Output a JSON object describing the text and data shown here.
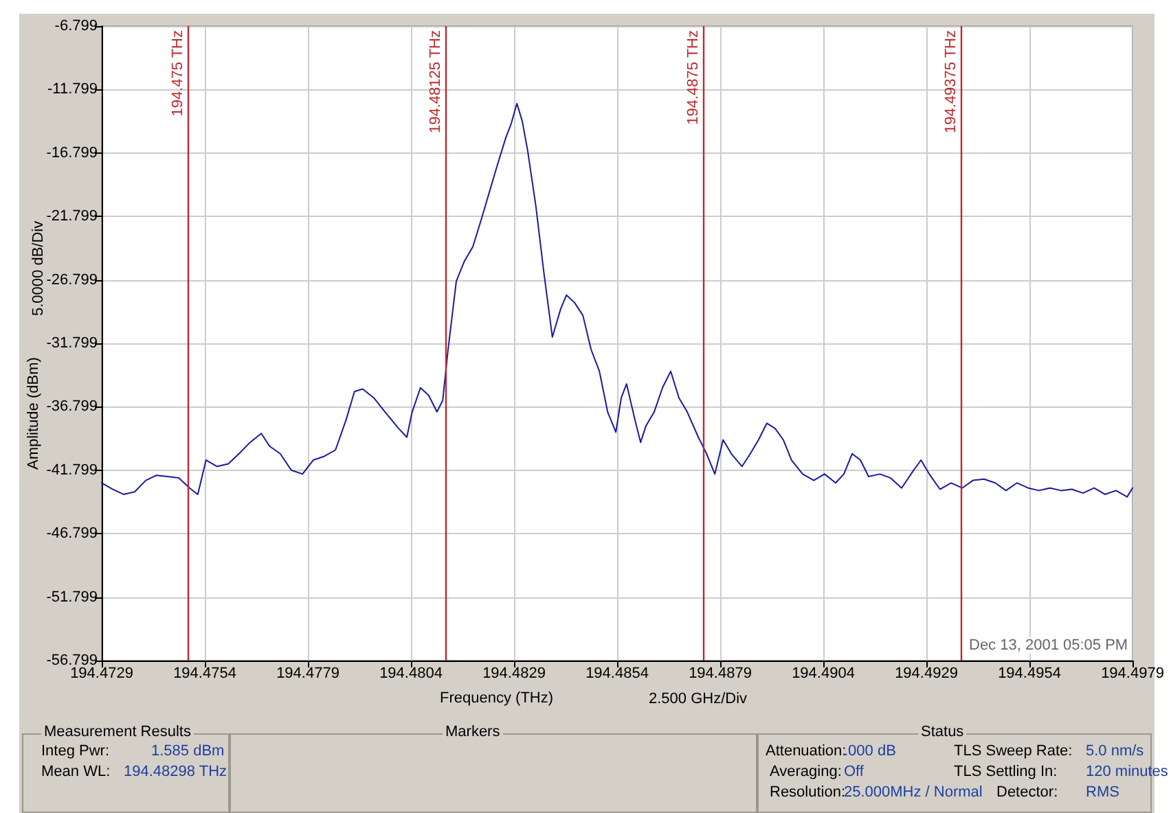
{
  "chart_data": {
    "type": "line",
    "xlabel": "Frequency (THz)",
    "ylabel": "Amplitude (dBm)",
    "xlim": [
      194.4729,
      194.4979
    ],
    "xticks": [
      194.4729,
      194.4754,
      194.4779,
      194.4804,
      194.4829,
      194.4854,
      194.4879,
      194.4904,
      194.4929,
      194.4954,
      194.4979
    ],
    "ylim": [
      -56.799,
      -6.799
    ],
    "yticks": [
      -56.799,
      -51.799,
      -46.799,
      -41.799,
      -36.799,
      -31.799,
      -26.799,
      -21.799,
      -16.799,
      -11.799,
      -6.799
    ],
    "grid": true,
    "marker": "none",
    "line_style": "solid",
    "series": [
      {
        "color": "#1a1aa0",
        "x": [
          194.4729,
          194.47317,
          194.47343,
          194.4737,
          194.47397,
          194.47423,
          194.4745,
          194.47477,
          194.47503,
          194.47523,
          194.47543,
          194.4757,
          194.47597,
          194.47623,
          194.4765,
          194.47677,
          194.47697,
          194.47723,
          194.4775,
          194.47777,
          194.47803,
          194.4783,
          194.47857,
          194.47883,
          194.47903,
          194.47923,
          194.4795,
          194.47977,
          194.4801,
          194.4803,
          194.48043,
          194.48063,
          194.48083,
          194.48103,
          194.48117,
          194.4813,
          194.4815,
          194.4817,
          194.4819,
          194.4821,
          194.4823,
          194.4825,
          194.4827,
          194.48283,
          194.48297,
          194.4831,
          194.48323,
          194.48343,
          194.48363,
          194.48383,
          194.48403,
          194.48417,
          194.48437,
          194.48457,
          194.48477,
          194.48497,
          194.48517,
          194.48537,
          194.4855,
          194.48563,
          194.48583,
          194.48597,
          194.4861,
          194.4863,
          194.4865,
          194.4867,
          194.4869,
          194.4871,
          194.48737,
          194.48757,
          194.48777,
          194.48797,
          194.48817,
          194.48843,
          194.48863,
          194.48883,
          194.48903,
          194.48923,
          194.48943,
          194.48963,
          194.4899,
          194.49017,
          194.49043,
          194.4907,
          194.4909,
          194.4911,
          194.4913,
          194.4915,
          194.49177,
          194.49203,
          194.4923,
          194.49257,
          194.49277,
          194.49297,
          194.49323,
          194.4935,
          194.49377,
          194.49403,
          194.4943,
          194.49457,
          194.49483,
          194.4951,
          194.49537,
          194.49563,
          194.4959,
          194.49617,
          194.49643,
          194.4967,
          194.49697,
          194.49723,
          194.4975,
          194.49777,
          194.4979
        ],
        "values": [
          -42.8,
          -43.3,
          -43.7,
          -43.5,
          -42.6,
          -42.2,
          -42.3,
          -42.4,
          -43.2,
          -43.7,
          -41.0,
          -41.5,
          -41.3,
          -40.5,
          -39.6,
          -38.9,
          -39.9,
          -40.5,
          -41.8,
          -42.1,
          -41.0,
          -40.7,
          -40.2,
          -37.8,
          -35.6,
          -35.4,
          -36.1,
          -37.2,
          -38.5,
          -39.2,
          -37.2,
          -35.3,
          -35.9,
          -37.2,
          -36.3,
          -32.3,
          -26.9,
          -25.3,
          -24.2,
          -22.1,
          -19.9,
          -17.7,
          -15.6,
          -14.5,
          -12.9,
          -14.3,
          -16.6,
          -21.0,
          -26.4,
          -31.3,
          -29.1,
          -28.0,
          -28.6,
          -29.6,
          -32.3,
          -34.0,
          -37.2,
          -38.8,
          -36.1,
          -35.0,
          -37.8,
          -39.6,
          -38.3,
          -37.2,
          -35.3,
          -34.0,
          -36.1,
          -37.2,
          -39.2,
          -40.5,
          -42.1,
          -39.4,
          -40.5,
          -41.5,
          -40.5,
          -39.4,
          -38.1,
          -38.5,
          -39.4,
          -41.0,
          -42.1,
          -42.6,
          -42.1,
          -42.8,
          -42.1,
          -40.5,
          -41.0,
          -42.3,
          -42.1,
          -42.4,
          -43.2,
          -41.9,
          -41.0,
          -42.1,
          -43.3,
          -42.8,
          -43.2,
          -42.6,
          -42.5,
          -42.8,
          -43.4,
          -42.8,
          -43.2,
          -43.4,
          -43.2,
          -43.4,
          -43.3,
          -43.6,
          -43.2,
          -43.7,
          -43.4,
          -43.9,
          -43.2
        ]
      }
    ],
    "ref_lines": [
      {
        "axis": "x",
        "value": 194.475,
        "label": "194.475 THz",
        "color": "#c0282d"
      },
      {
        "axis": "x",
        "value": 194.48125,
        "label": "194.48125 THz",
        "color": "#c0282d"
      },
      {
        "axis": "x",
        "value": 194.4875,
        "label": "194.4875 THz",
        "color": "#c0282d"
      },
      {
        "axis": "x",
        "value": 194.49375,
        "label": "194.49375 THz",
        "color": "#c0282d"
      }
    ],
    "annotations": [
      "5.0000 dB/Div",
      "2.500 GHz/Div",
      "Dec 13, 2001 05:05 PM",
      "Measurement Results",
      "Integ Pwr:",
      "1.585 dBm",
      "Mean WL:",
      "194.48298 THz",
      "Markers",
      "Status",
      "Attenuation:",
      ".000 dB",
      "Averaging:",
      "Off",
      "Resolution:",
      "25.000MHz / Normal",
      "TLS Sweep Rate:",
      "5.0 nm/s",
      "TLS Settling In:",
      "120 minutes",
      "Detector:",
      "RMS"
    ]
  }
}
